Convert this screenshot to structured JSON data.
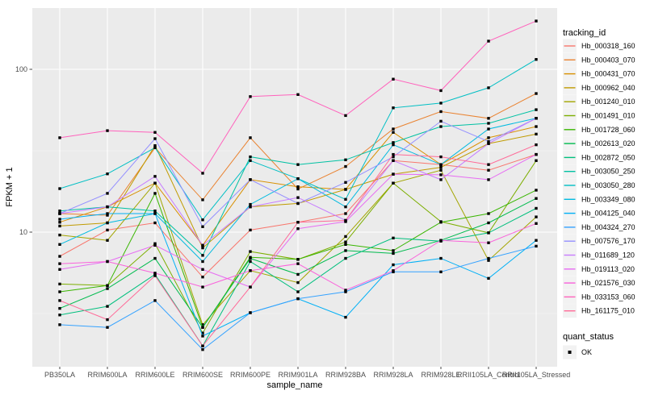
{
  "figure": {
    "background": "#FFFFFF",
    "panel_background": "#EBEBEB",
    "grid_major_color": "#FFFFFF",
    "grid_minor_color": "#F5F5F5",
    "axis_text_color": "#4D4D4D",
    "tick_mark_color": "#333333",
    "legend_key_background": "#F2F2F2",
    "marker_color": "#000000"
  },
  "chart_data": {
    "type": "line",
    "title": "",
    "x_axis": {
      "label": "sample_name",
      "categories": [
        "PB350LA",
        "RRIM600LA",
        "RRIM600LE",
        "RRIM600SE",
        "RRIM600PE",
        "RRIM901LA",
        "RRIM928BA",
        "RRIM928LA",
        "RRIM928LE",
        "RRII105LA_Control",
        "RRII105LA_Stressed"
      ]
    },
    "y_axis": {
      "label": "FPKM + 1",
      "scale": "log10",
      "tick_values": [
        10,
        100
      ],
      "tick_labels": [
        "10",
        "100"
      ],
      "minor_tick_values": [
        3.162,
        31.62
      ],
      "range": [
        1.5,
        238
      ]
    },
    "legend": {
      "tracking_title": "tracking_id",
      "quant_title": "quant_status",
      "quant_items": [
        {
          "label": "OK",
          "marker": "black-square"
        }
      ]
    },
    "series": [
      {
        "id": "Hb_000318_160",
        "color": "#F8766D",
        "values": [
          7.1,
          10.3,
          11.4,
          5.3,
          10.3,
          11.5,
          13.0,
          27.5,
          26.0,
          24.0,
          30.0
        ]
      },
      {
        "id": "Hb_000403_070",
        "color": "#EA8331",
        "values": [
          13.0,
          12.7,
          33.0,
          15.8,
          38.0,
          18.4,
          25.3,
          43.0,
          55.0,
          50.0,
          71.0
        ]
      },
      {
        "id": "Hb_000431_070",
        "color": "#D89000",
        "values": [
          11.5,
          14.3,
          20.0,
          8.3,
          21.0,
          19.0,
          18.3,
          41.0,
          26.0,
          38.0,
          44.5
        ]
      },
      {
        "id": "Hb_000962_040",
        "color": "#C09B00",
        "values": [
          10.9,
          11.4,
          34.0,
          8.0,
          14.3,
          15.0,
          18.3,
          22.7,
          25.0,
          35.0,
          40.0
        ]
      },
      {
        "id": "Hb_001240_010",
        "color": "#A3A500",
        "values": [
          9.6,
          8.9,
          20.0,
          2.7,
          5.8,
          4.9,
          9.4,
          20.0,
          24.0,
          6.7,
          12.4
        ]
      },
      {
        "id": "Hb_001491_010",
        "color": "#7CAE00",
        "values": [
          4.8,
          4.7,
          8.5,
          2.4,
          7.6,
          6.8,
          8.7,
          20.0,
          11.6,
          9.9,
          27.5
        ]
      },
      {
        "id": "Hb_001728_060",
        "color": "#39B600",
        "values": [
          4.3,
          4.7,
          17.3,
          2.6,
          7.0,
          6.8,
          8.4,
          7.7,
          11.5,
          13.0,
          18.1
        ]
      },
      {
        "id": "Hb_002613_020",
        "color": "#00BB4E",
        "values": [
          3.4,
          4.5,
          6.9,
          2.6,
          6.9,
          5.5,
          7.7,
          7.4,
          8.9,
          11.4,
          16.1
        ]
      },
      {
        "id": "Hb_002872_050",
        "color": "#00BF7D",
        "values": [
          3.1,
          3.5,
          5.5,
          2.0,
          6.6,
          4.3,
          6.9,
          9.2,
          8.8,
          9.9,
          14.0
        ]
      },
      {
        "id": "Hb_003050_250",
        "color": "#00C1A3",
        "values": [
          13.5,
          14.3,
          13.5,
          7.2,
          29.0,
          26.0,
          27.8,
          35.5,
          44.5,
          46.6,
          56.5
        ]
      },
      {
        "id": "Hb_003050_280",
        "color": "#00BFC4",
        "values": [
          18.5,
          22.8,
          33.0,
          11.9,
          27.5,
          21.3,
          15.9,
          58.0,
          62.0,
          77.0,
          115.0
        ]
      },
      {
        "id": "Hb_003349_080",
        "color": "#00BAE0",
        "values": [
          8.4,
          11.4,
          13.0,
          6.6,
          14.8,
          21.3,
          14.3,
          34.4,
          26.0,
          43.0,
          50.0
        ]
      },
      {
        "id": "Hb_004125_040",
        "color": "#00B0F6",
        "values": [
          12.0,
          13.0,
          13.0,
          2.3,
          3.2,
          3.9,
          3.0,
          6.3,
          6.9,
          5.2,
          8.9
        ]
      },
      {
        "id": "Hb_004324_270",
        "color": "#35A2FF",
        "values": [
          2.7,
          2.6,
          3.8,
          1.9,
          3.2,
          3.9,
          4.3,
          5.7,
          5.7,
          6.9,
          8.2
        ]
      },
      {
        "id": "Hb_007576_170",
        "color": "#9590FF",
        "values": [
          13.0,
          17.3,
          37.5,
          10.8,
          21.0,
          15.0,
          20.2,
          29.0,
          48.0,
          36.0,
          50.0
        ]
      },
      {
        "id": "Hb_011689_120",
        "color": "#C77CFF",
        "values": [
          13.0,
          14.3,
          22.0,
          8.3,
          14.3,
          16.3,
          11.8,
          27.5,
          21.0,
          35.0,
          50.0
        ]
      },
      {
        "id": "Hb_019113_020",
        "color": "#E76BF3",
        "values": [
          5.9,
          6.6,
          8.3,
          5.9,
          4.6,
          10.5,
          11.6,
          22.7,
          22.5,
          21.0,
          30.0
        ]
      },
      {
        "id": "Hb_021576_030",
        "color": "#FA62DB",
        "values": [
          6.4,
          6.6,
          5.6,
          4.6,
          5.8,
          6.4,
          4.4,
          5.8,
          8.9,
          8.6,
          11.3
        ]
      },
      {
        "id": "Hb_033153_060",
        "color": "#FF62BC",
        "values": [
          38.0,
          42.0,
          41.0,
          23.0,
          68.0,
          70.0,
          52.0,
          87.0,
          74.0,
          149.0,
          198.0
        ]
      },
      {
        "id": "Hb_161175_010",
        "color": "#FF6A98",
        "values": [
          3.8,
          2.9,
          5.4,
          2.0,
          4.6,
          11.5,
          11.8,
          30.0,
          29.0,
          26.0,
          34.4
        ]
      }
    ]
  }
}
